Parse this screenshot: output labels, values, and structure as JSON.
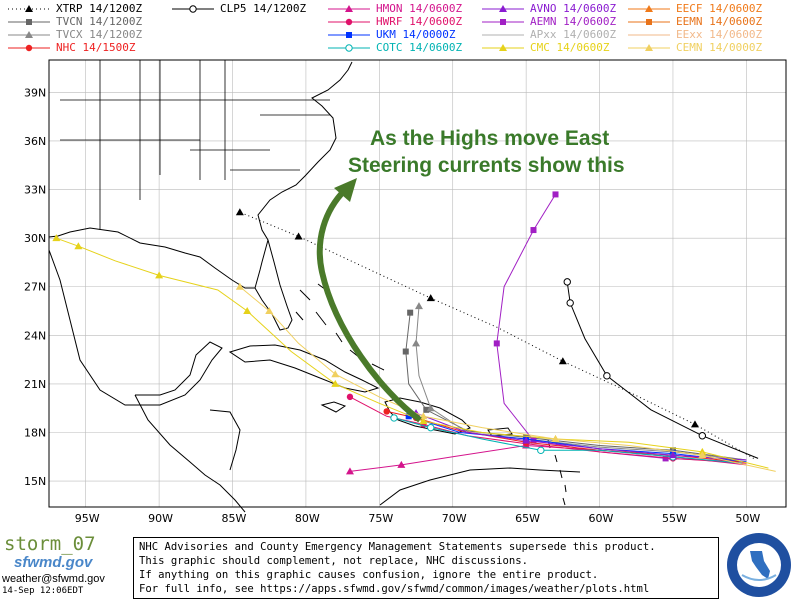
{
  "legend": [
    {
      "label": "XTRP 14/1200Z",
      "color": "#000000",
      "marker": "triangle",
      "dash": "dotted"
    },
    {
      "label": "TVCN 14/1200Z",
      "color": "#666666",
      "marker": "square",
      "dash": "solid"
    },
    {
      "label": "TVCX 14/1200Z",
      "color": "#888888",
      "marker": "triangle",
      "dash": "solid"
    },
    {
      "label": "NHC 14/1500Z",
      "color": "#ee2222",
      "marker": "circle",
      "dash": "solid"
    },
    {
      "label": "CLP5 14/1200Z",
      "color": "#000000",
      "marker": "open-circle",
      "dash": "solid"
    },
    {
      "label": "HMON 14/0600Z",
      "color": "#d4148c",
      "marker": "triangle",
      "dash": "solid"
    },
    {
      "label": "HWRF 14/0600Z",
      "color": "#e0116a",
      "marker": "circle",
      "dash": "solid"
    },
    {
      "label": "UKM 14/0000Z",
      "color": "#0033ff",
      "marker": "square",
      "dash": "solid"
    },
    {
      "label": "COTC 14/0600Z",
      "color": "#00b3b3",
      "marker": "open-circle",
      "dash": "solid"
    },
    {
      "label": "AVNO 14/0600Z",
      "color": "#8a1bd1",
      "marker": "triangle",
      "dash": "solid"
    },
    {
      "label": "AEMN 14/0600Z",
      "color": "#a11fc4",
      "marker": "square",
      "dash": "solid"
    },
    {
      "label": "APxx 14/0600Z",
      "color": "#b0b0b0",
      "marker": "none",
      "dash": "solid"
    },
    {
      "label": "CMC 14/0600Z",
      "color": "#e6d21a",
      "marker": "triangle",
      "dash": "solid"
    },
    {
      "label": "EECF 14/0600Z",
      "color": "#f07a1a",
      "marker": "triangle",
      "dash": "solid"
    },
    {
      "label": "EEMN 14/0600Z",
      "color": "#e8731a",
      "marker": "square",
      "dash": "solid"
    },
    {
      "label": "EExx 14/0600Z",
      "color": "#f2b98a",
      "marker": "none",
      "dash": "solid"
    },
    {
      "label": "CEMN 14/0000Z",
      "color": "#f0d060",
      "marker": "triangle",
      "dash": "solid"
    }
  ],
  "map": {
    "lat_labels": [
      "39N",
      "36N",
      "33N",
      "30N",
      "27N",
      "24N",
      "21N",
      "18N",
      "15N"
    ],
    "lon_labels": [
      "95W",
      "90W",
      "85W",
      "80W",
      "75W",
      "70W",
      "65W",
      "60W",
      "55W",
      "50W"
    ],
    "lat_values": [
      39,
      36,
      33,
      30,
      27,
      24,
      21,
      18,
      15
    ],
    "lon_values": [
      -95,
      -90,
      -85,
      -80,
      -75,
      -70,
      -65,
      -60,
      -55,
      -50
    ],
    "extent": {
      "west": -97.5,
      "east": -47.3,
      "north": 41,
      "south": 13.4
    },
    "grid_color": "#bbbbbb",
    "land_color": "#ffffff",
    "water_color": "#ffffff",
    "tracks": [
      {
        "model": "XTRP",
        "color": "#000000",
        "dash": "1,3",
        "marker": "triangle",
        "points": [
          [
            -49.5,
            16.4
          ],
          [
            -53.5,
            18.5
          ],
          [
            -58.0,
            20.5
          ],
          [
            -62.5,
            22.4
          ],
          [
            -67.0,
            24.5
          ],
          [
            -71.5,
            26.3
          ],
          [
            -76.0,
            28.2
          ],
          [
            -80.5,
            30.1
          ],
          [
            -84.5,
            31.6
          ]
        ]
      },
      {
        "model": "CLP5",
        "color": "#000000",
        "dash": "",
        "marker": "open-circle",
        "points": [
          [
            -49.2,
            16.4
          ],
          [
            -53.0,
            17.8
          ],
          [
            -56.5,
            19.4
          ],
          [
            -59.5,
            21.5
          ],
          [
            -61.0,
            23.8
          ],
          [
            -62.0,
            26.0
          ],
          [
            -62.2,
            27.3
          ]
        ]
      },
      {
        "model": "TVCN",
        "color": "#666666",
        "dash": "",
        "marker": "square",
        "points": [
          [
            -50.0,
            16.3
          ],
          [
            -55.0,
            16.9
          ],
          [
            -60.0,
            17.2
          ],
          [
            -65.0,
            17.7
          ],
          [
            -69.0,
            18.1
          ],
          [
            -71.8,
            19.4
          ],
          [
            -73.0,
            21.0
          ],
          [
            -73.2,
            23.0
          ],
          [
            -72.9,
            25.4
          ]
        ]
      },
      {
        "model": "TVCX",
        "color": "#888888",
        "dash": "",
        "marker": "triangle",
        "points": [
          [
            -50.0,
            16.3
          ],
          [
            -55.0,
            16.8
          ],
          [
            -60.0,
            17.1
          ],
          [
            -65.0,
            17.6
          ],
          [
            -69.0,
            18.0
          ],
          [
            -71.5,
            19.5
          ],
          [
            -72.3,
            21.5
          ],
          [
            -72.5,
            23.5
          ],
          [
            -72.3,
            25.8
          ]
        ]
      },
      {
        "model": "AEMN",
        "color": "#a11fc4",
        "dash": "",
        "marker": "square",
        "points": [
          [
            -50.2,
            16.2
          ],
          [
            -55.5,
            16.4
          ],
          [
            -60.0,
            16.8
          ],
          [
            -64.5,
            17.5
          ],
          [
            -66.5,
            19.8
          ],
          [
            -67.0,
            23.5
          ],
          [
            -66.5,
            27.0
          ],
          [
            -64.5,
            30.5
          ],
          [
            -63.0,
            32.7
          ]
        ]
      },
      {
        "model": "HMON",
        "color": "#d4148c",
        "dash": "",
        "marker": "triangle",
        "points": [
          [
            -50.0,
            16.0
          ],
          [
            -55.0,
            16.5
          ],
          [
            -60.0,
            16.9
          ],
          [
            -65.0,
            17.2
          ],
          [
            -70.0,
            16.5
          ],
          [
            -73.5,
            16.0
          ],
          [
            -77.0,
            15.6
          ]
        ]
      },
      {
        "model": "HWRF",
        "color": "#e0116a",
        "dash": "",
        "marker": "circle",
        "points": [
          [
            -50.0,
            16.1
          ],
          [
            -55.0,
            16.4
          ],
          [
            -60.0,
            16.8
          ],
          [
            -65.0,
            17.3
          ],
          [
            -69.0,
            17.8
          ],
          [
            -72.0,
            18.5
          ],
          [
            -74.5,
            19.0
          ],
          [
            -77.0,
            20.2
          ]
        ]
      },
      {
        "model": "NHC",
        "color": "#ee2222",
        "dash": "",
        "marker": "circle",
        "points": [
          [
            -50.5,
            16.2
          ],
          [
            -55.0,
            16.6
          ],
          [
            -60.0,
            16.9
          ],
          [
            -65.0,
            17.4
          ],
          [
            -69.5,
            18.1
          ],
          [
            -72.5,
            18.9
          ],
          [
            -74.5,
            19.3
          ]
        ]
      },
      {
        "model": "UKM",
        "color": "#0033ff",
        "dash": "",
        "marker": "square",
        "points": [
          [
            -50.0,
            16.2
          ],
          [
            -55.0,
            16.7
          ],
          [
            -60.0,
            17.0
          ],
          [
            -65.0,
            17.6
          ],
          [
            -69.5,
            18.0
          ],
          [
            -73.0,
            19.0
          ]
        ]
      },
      {
        "model": "COTC",
        "color": "#00b3b3",
        "dash": "",
        "marker": "open-circle",
        "points": [
          [
            -50.3,
            16.1
          ],
          [
            -55.0,
            16.5
          ],
          [
            -60.0,
            16.9
          ],
          [
            -64.0,
            16.9
          ],
          [
            -68.0,
            17.6
          ],
          [
            -71.5,
            18.3
          ],
          [
            -74.0,
            18.9
          ]
        ]
      },
      {
        "model": "AVNO",
        "color": "#8a1bd1",
        "dash": "",
        "marker": "triangle",
        "points": [
          [
            -50.0,
            16.3
          ],
          [
            -55.0,
            16.6
          ],
          [
            -60.0,
            17.0
          ],
          [
            -65.0,
            17.5
          ],
          [
            -69.0,
            18.0
          ],
          [
            -72.5,
            19.2
          ]
        ]
      },
      {
        "model": "CMC",
        "color": "#e6d21a",
        "dash": "",
        "marker": "triangle",
        "points": [
          [
            -48.5,
            15.8
          ],
          [
            -53.0,
            16.8
          ],
          [
            -58.0,
            17.4
          ],
          [
            -63.0,
            17.6
          ],
          [
            -68.0,
            18.0
          ],
          [
            -72.0,
            18.7
          ],
          [
            -75.0,
            19.8
          ],
          [
            -78.0,
            21.0
          ],
          [
            -81.0,
            23.0
          ],
          [
            -84.0,
            25.5
          ],
          [
            -86.0,
            26.8
          ],
          [
            -90.0,
            27.7
          ],
          [
            -93.0,
            28.6
          ],
          [
            -95.5,
            29.5
          ],
          [
            -97.0,
            30.0
          ]
        ]
      },
      {
        "model": "CEMN",
        "color": "#f0d060",
        "dash": "",
        "marker": "triangle",
        "points": [
          [
            -48.0,
            15.6
          ],
          [
            -53.0,
            16.6
          ],
          [
            -58.0,
            17.2
          ],
          [
            -63.0,
            17.6
          ],
          [
            -68.0,
            18.3
          ],
          [
            -72.0,
            19.0
          ],
          [
            -75.0,
            20.2
          ],
          [
            -78.0,
            21.6
          ],
          [
            -80.5,
            23.5
          ],
          [
            -82.5,
            25.5
          ],
          [
            -84.5,
            27.0
          ]
        ]
      }
    ]
  },
  "annotation": {
    "line1": "As the Highs move East",
    "line2": "Steering currents show this",
    "color": "#3a7a2a"
  },
  "footer": {
    "brand": "storm_07",
    "brand_sub": "sfwmd.gov",
    "email": "weather@sfwmd.gov",
    "timestamp": "14-Sep 12:06EDT",
    "disclaimer": [
      "NHC Advisories and County Emergency Management Statements supersede this product.",
      "This graphic should complement, not replace, NHC discussions.",
      "If anything on this graphic causes confusion, ignore the entire product.",
      "For full info, see  https://apps.sfwmd.gov/sfwmd/common/images/weather/plots.html"
    ],
    "seal_text": "SOUTH FLORIDA WATER MANAGEMENT DISTRICT"
  }
}
